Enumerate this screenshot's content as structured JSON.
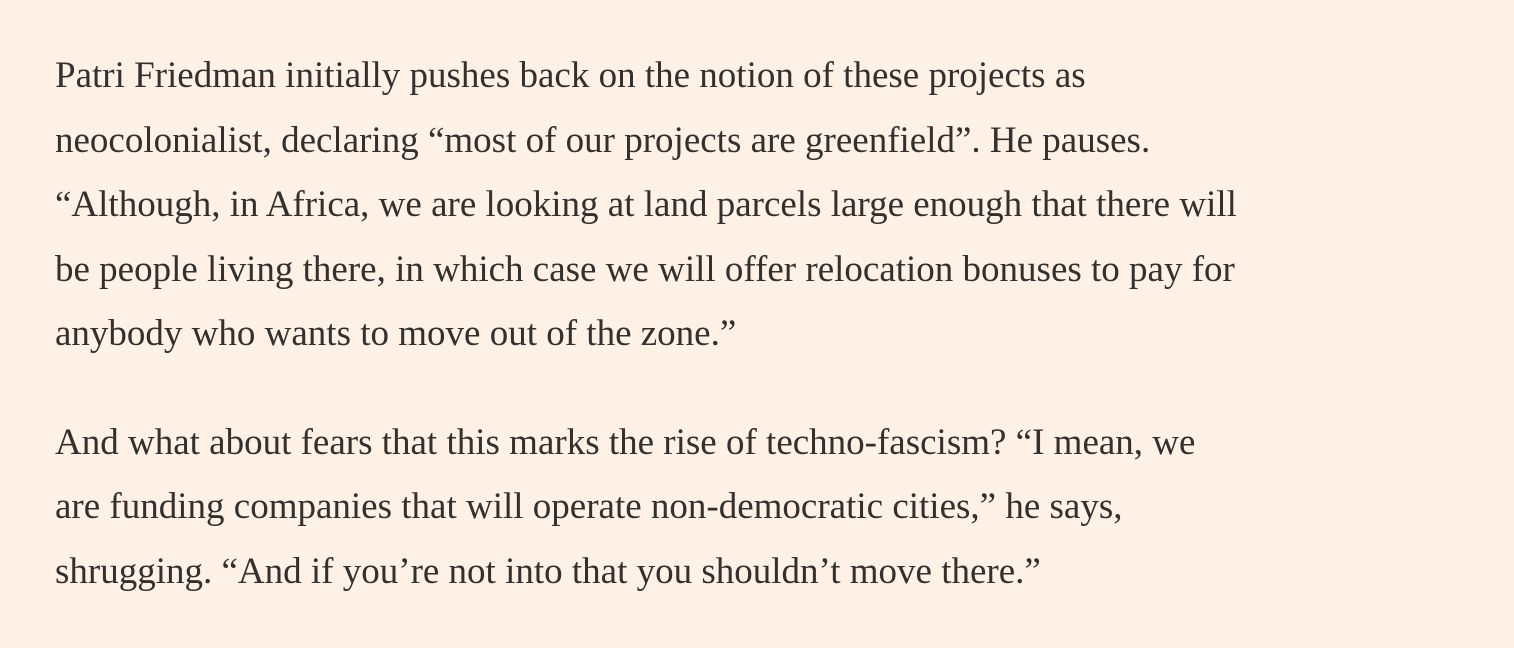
{
  "paragraphs": [
    {
      "lines": [
        "Patri Friedman initially pushes back on the notion of these projects as",
        "neocolonialist, declaring “most of our projects are greenfield”. He pauses.",
        "“Although, in Africa, we are looking at land parcels large enough that there will",
        "be people living there, in which case we will offer relocation bonuses to pay for",
        "anybody who wants to move out of the zone.”"
      ]
    },
    {
      "lines": [
        "And what about fears that this marks the rise of techno-fascism? “I mean, we",
        "are funding companies that will operate non-democratic cities,” he says,",
        "shrugging. “And if you’re not into that you shouldn’t move there.”"
      ]
    }
  ]
}
